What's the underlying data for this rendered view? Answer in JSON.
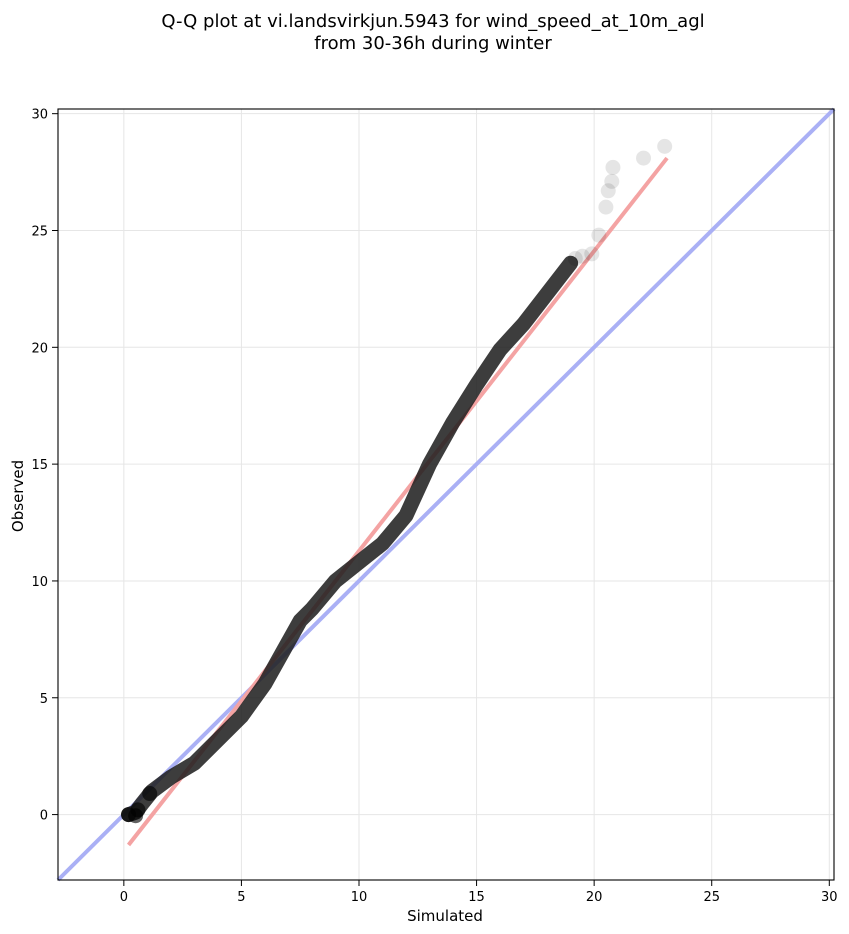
{
  "chart_data": {
    "type": "scatter",
    "title": "Q-Q plot at vi.landsvirkjun.5943 for wind_speed_at_10m_agl",
    "subtitle": "from 30-36h during winter",
    "xlabel": "Simulated",
    "ylabel": "Observed",
    "xlim": [
      -2.8,
      30.2
    ],
    "ylim": [
      -2.8,
      30.2
    ],
    "xticks": [
      "0",
      "5",
      "10",
      "15",
      "20",
      "25",
      "30"
    ],
    "yticks": [
      "0",
      "5",
      "10",
      "15",
      "20",
      "25",
      "30"
    ],
    "grid": true,
    "legend": "none",
    "colors": {
      "points": "#000000",
      "fit_line": "#f4a3a3",
      "identity_line": "#aab0f5",
      "grid": "#e6e6e6"
    },
    "reference_lines": [
      {
        "kind": "identity",
        "x": [
          -2.8,
          30.2
        ],
        "y": [
          -2.8,
          30.2
        ]
      },
      {
        "kind": "linear-fit",
        "x": [
          0.2,
          23.1
        ],
        "y": [
          -1.3,
          28.1
        ]
      }
    ],
    "quantile_path": {
      "x": [
        0.2,
        0.5,
        0.8,
        1.2,
        2.0,
        3.0,
        4.0,
        5.0,
        6.0,
        7.0,
        7.5,
        8.0,
        9.0,
        10.0,
        11.0,
        12.0,
        13.0,
        14.0,
        15.0,
        16.0,
        17.0,
        18.0,
        19.0
      ],
      "y": [
        0.0,
        0.1,
        0.5,
        1.0,
        1.6,
        2.2,
        3.2,
        4.2,
        5.6,
        7.4,
        8.3,
        8.8,
        10.0,
        10.8,
        11.6,
        12.8,
        15.0,
        16.8,
        18.4,
        19.9,
        21.0,
        22.3,
        23.6
      ]
    },
    "points": [
      {
        "x": 0.2,
        "y": 0.0
      },
      {
        "x": 0.5,
        "y": -0.05
      },
      {
        "x": 0.6,
        "y": 0.2
      },
      {
        "x": 1.1,
        "y": 0.9
      },
      {
        "x": 19.2,
        "y": 23.8
      },
      {
        "x": 19.5,
        "y": 23.9
      },
      {
        "x": 19.9,
        "y": 24.0
      },
      {
        "x": 20.2,
        "y": 24.8
      },
      {
        "x": 20.5,
        "y": 26.0
      },
      {
        "x": 20.6,
        "y": 26.7
      },
      {
        "x": 20.75,
        "y": 27.1
      },
      {
        "x": 20.8,
        "y": 27.7
      },
      {
        "x": 22.1,
        "y": 28.1
      },
      {
        "x": 23.0,
        "y": 28.6
      }
    ]
  }
}
